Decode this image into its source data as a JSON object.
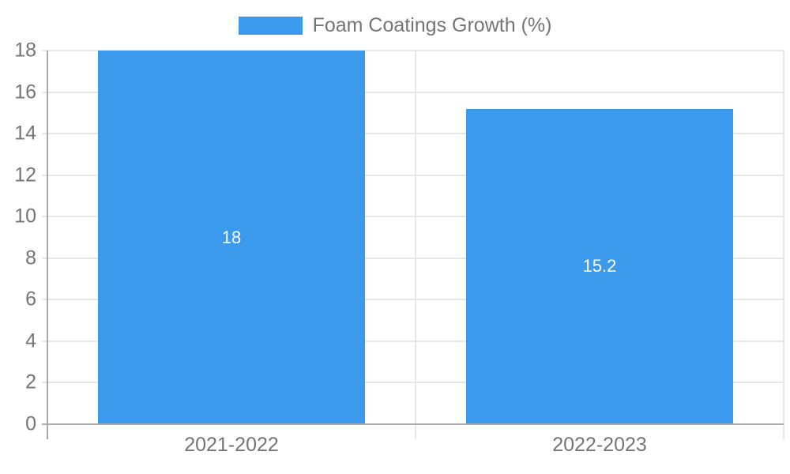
{
  "chart_data": {
    "type": "bar",
    "title": "",
    "legend": {
      "label": "Foam Coatings Growth (%)",
      "position": "top"
    },
    "categories": [
      "2021-2022",
      "2022-2023"
    ],
    "series": [
      {
        "name": "Foam Coatings Growth (%)",
        "values": [
          18,
          15.2
        ]
      }
    ],
    "value_labels": [
      "18",
      "15.2"
    ],
    "ylabel": "",
    "xlabel": "",
    "ylim": [
      0,
      18
    ],
    "ytick_step": 2,
    "yticks": [
      0,
      2,
      4,
      6,
      8,
      10,
      12,
      14,
      16,
      18
    ],
    "grid": "horizontal-on, category-boundary-lines-on",
    "bar_width_frac": 0.725,
    "colors": {
      "bar": "#3b9aeb",
      "legend_text": "#757575",
      "axis_text": "#757575",
      "gridline": "#e6e6e6",
      "axis_line": "#a9a9a9",
      "baseline": "#ababab",
      "data_label_text": "#ffffff",
      "background": "#ffffff"
    }
  }
}
